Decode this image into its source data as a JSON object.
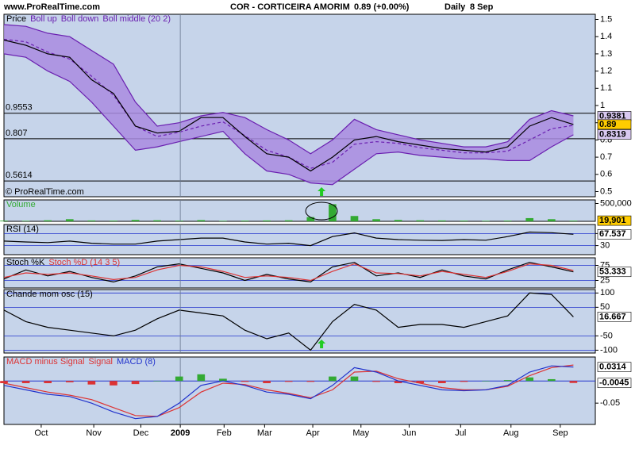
{
  "header": {
    "site": "www.ProRealTime.com",
    "ticker": "COR - CORTICEIRA AMORIM",
    "quote": "0.89 (+0.00%)",
    "period": "Daily",
    "date": "8 Sep",
    "watermark": "© ProRealTime.com"
  },
  "chart_data": [
    {
      "type": "bollinger",
      "x": [
        0,
        2,
        4,
        6,
        8,
        10,
        12,
        14,
        16,
        18,
        20,
        22,
        24,
        26,
        28,
        30,
        32,
        34,
        36,
        38,
        40,
        42,
        44,
        46,
        48,
        50,
        52
      ],
      "xlim": [
        0,
        54
      ],
      "ylim": [
        0.47,
        1.53
      ],
      "yticks": [
        0.5,
        0.6,
        0.7,
        0.8,
        0.9,
        1,
        1.1,
        1.2,
        1.3,
        1.4,
        1.5
      ],
      "levels": [
        0.9553,
        0.807,
        0.5614
      ],
      "band_color": "#a98be0",
      "series": [
        {
          "name": "Price",
          "color": "#000000",
          "values": [
            1.38,
            1.35,
            1.3,
            1.28,
            1.15,
            1.07,
            0.88,
            0.84,
            0.85,
            0.93,
            0.93,
            0.82,
            0.72,
            0.7,
            0.62,
            0.7,
            0.8,
            0.82,
            0.79,
            0.77,
            0.75,
            0.74,
            0.73,
            0.76,
            0.88,
            0.93,
            0.89
          ]
        },
        {
          "name": "Boll up",
          "color": "#6a1fb0",
          "values": [
            1.47,
            1.46,
            1.42,
            1.4,
            1.32,
            1.24,
            1.02,
            0.88,
            0.9,
            0.94,
            0.96,
            0.93,
            0.86,
            0.8,
            0.72,
            0.8,
            0.92,
            0.86,
            0.83,
            0.8,
            0.78,
            0.76,
            0.76,
            0.79,
            0.92,
            0.97,
            0.94
          ]
        },
        {
          "name": "Boll down",
          "color": "#6a1fb0",
          "values": [
            1.3,
            1.28,
            1.2,
            1.14,
            1.02,
            0.88,
            0.74,
            0.76,
            0.79,
            0.82,
            0.85,
            0.72,
            0.62,
            0.6,
            0.55,
            0.54,
            0.63,
            0.72,
            0.73,
            0.71,
            0.7,
            0.69,
            0.69,
            0.68,
            0.68,
            0.76,
            0.83
          ]
        },
        {
          "name": "Boll middle (20 2)",
          "color": "#6a1fb0",
          "values": [
            1.385,
            1.37,
            1.31,
            1.27,
            1.17,
            1.06,
            0.88,
            0.82,
            0.845,
            0.88,
            0.905,
            0.825,
            0.74,
            0.7,
            0.635,
            0.67,
            0.775,
            0.79,
            0.78,
            0.755,
            0.74,
            0.725,
            0.725,
            0.735,
            0.8,
            0.865,
            0.885
          ]
        }
      ],
      "last_labels": [
        {
          "value": 0.9381,
          "label": "0.9381",
          "color": "#d8c8f0"
        },
        {
          "value": 0.89,
          "label": "0.89",
          "color": "#ffcc00"
        },
        {
          "value": 0.8319,
          "label": "0.8319",
          "color": "#d8c8f0"
        }
      ]
    },
    {
      "type": "bar",
      "x": [
        0,
        2,
        4,
        6,
        8,
        10,
        12,
        14,
        16,
        18,
        20,
        22,
        24,
        26,
        28,
        30,
        32,
        34,
        36,
        38,
        40,
        42,
        44,
        46,
        48,
        50,
        52
      ],
      "xlim": [
        0,
        54
      ],
      "ylim": [
        0,
        600000
      ],
      "yticks": [
        {
          "value": 500000,
          "label": "500,000"
        }
      ],
      "series": [
        {
          "name": "Volume",
          "color": "#33aa33",
          "values": [
            20000,
            15000,
            30000,
            60000,
            25000,
            20000,
            40000,
            30000,
            20000,
            35000,
            15000,
            20000,
            25000,
            30000,
            120000,
            480000,
            150000,
            60000,
            40000,
            30000,
            25000,
            20000,
            15000,
            20000,
            90000,
            60000,
            19901
          ]
        }
      ],
      "last_labels": [
        {
          "value": 19901,
          "label": "19,901",
          "color": "#ffcc00"
        }
      ]
    },
    {
      "type": "line",
      "x": [
        0,
        2,
        4,
        6,
        8,
        10,
        12,
        14,
        16,
        18,
        20,
        22,
        24,
        26,
        28,
        30,
        32,
        34,
        36,
        38,
        40,
        42,
        44,
        46,
        48,
        50,
        52
      ],
      "xlim": [
        0,
        54
      ],
      "ylim": [
        0,
        100
      ],
      "yticks": [
        30,
        70
      ],
      "grid": true,
      "series": [
        {
          "name": "RSI (14)",
          "color": "#000000",
          "values": [
            45,
            42,
            40,
            45,
            38,
            35,
            35,
            45,
            50,
            55,
            55,
            42,
            35,
            38,
            30,
            60,
            72,
            55,
            50,
            48,
            47,
            50,
            48,
            60,
            75,
            73,
            67.537
          ]
        }
      ],
      "last_labels": [
        {
          "value": 67.537,
          "label": "67.537",
          "color": "#ffffff"
        }
      ]
    },
    {
      "type": "line",
      "x": [
        0,
        2,
        4,
        6,
        8,
        10,
        12,
        14,
        16,
        18,
        20,
        22,
        24,
        26,
        28,
        30,
        32,
        34,
        36,
        38,
        40,
        42,
        44,
        46,
        48,
        50,
        52
      ],
      "xlim": [
        0,
        54
      ],
      "ylim": [
        0,
        100
      ],
      "yticks": [
        25,
        75
      ],
      "grid": true,
      "series": [
        {
          "name": "Stoch %K",
          "color": "#000000",
          "values": [
            30,
            60,
            40,
            55,
            35,
            20,
            40,
            70,
            80,
            65,
            50,
            25,
            45,
            30,
            20,
            70,
            85,
            40,
            50,
            35,
            60,
            40,
            30,
            60,
            85,
            70,
            53.333
          ]
        },
        {
          "name": "Stoch %D (14 3 5)",
          "color": "#dd3333",
          "values": [
            35,
            50,
            45,
            50,
            40,
            28,
            35,
            60,
            75,
            70,
            55,
            35,
            40,
            35,
            25,
            55,
            80,
            50,
            48,
            40,
            55,
            45,
            35,
            55,
            80,
            75,
            58
          ]
        }
      ],
      "last_labels": [
        {
          "value": 53.333,
          "label": "53.333",
          "color": "#ffffff"
        }
      ]
    },
    {
      "type": "line",
      "x": [
        0,
        2,
        4,
        6,
        8,
        10,
        12,
        14,
        16,
        18,
        20,
        22,
        24,
        26,
        28,
        30,
        32,
        34,
        36,
        38,
        40,
        42,
        44,
        46,
        48,
        50,
        52
      ],
      "xlim": [
        0,
        54
      ],
      "ylim": [
        -110,
        112
      ],
      "yticks": [
        -100,
        -50,
        50,
        100
      ],
      "grid": true,
      "series": [
        {
          "name": "Chande mom osc (15)",
          "color": "#000000",
          "values": [
            40,
            0,
            -20,
            -30,
            -40,
            -50,
            -30,
            10,
            40,
            30,
            20,
            -30,
            -60,
            -40,
            -100,
            0,
            60,
            40,
            -20,
            -10,
            -10,
            -20,
            0,
            20,
            100,
            95,
            16.667
          ]
        }
      ],
      "last_labels": [
        {
          "value": 16.667,
          "label": "16.667",
          "color": "#ffffff"
        }
      ]
    },
    {
      "type": "macd",
      "x": [
        0,
        2,
        4,
        6,
        8,
        10,
        12,
        14,
        16,
        18,
        20,
        22,
        24,
        26,
        28,
        30,
        32,
        34,
        36,
        38,
        40,
        42,
        44,
        46,
        48,
        50,
        52
      ],
      "xlim": [
        0,
        54
      ],
      "ylim": [
        -0.098,
        0.054
      ],
      "yticks": [
        -0.05
      ],
      "hlines": [
        0
      ],
      "xticks": [
        {
          "value": 3.4,
          "label": "Oct"
        },
        {
          "value": 8.2,
          "label": "Nov"
        },
        {
          "value": 12.5,
          "label": "Dec"
        },
        {
          "value": 16.1,
          "label": "2009",
          "bold": true
        },
        {
          "value": 20.1,
          "label": "Feb"
        },
        {
          "value": 23.8,
          "label": "Mar"
        },
        {
          "value": 28.2,
          "label": "Apr"
        },
        {
          "value": 32.6,
          "label": "May"
        },
        {
          "value": 37,
          "label": "Jun"
        },
        {
          "value": 41.7,
          "label": "Jul"
        },
        {
          "value": 46.3,
          "label": "Aug"
        },
        {
          "value": 50.8,
          "label": "Sep"
        }
      ],
      "series": [
        {
          "name": "MACD minus Signal",
          "color": "#dd3333",
          "values": [
            -0.005,
            -0.005,
            -0.005,
            -0.003,
            -0.008,
            -0.01,
            -0.007,
            0,
            0.01,
            0.015,
            0.005,
            -0.002,
            -0.005,
            -0.002,
            -0.002,
            0.01,
            0.01,
            -0.002,
            -0.005,
            -0.005,
            -0.005,
            -0.002,
            0,
            0.002,
            0.008,
            0.004,
            -0.0045
          ]
        },
        {
          "name": "Signal",
          "color": "#dd3333",
          "values": [
            -0.005,
            -0.015,
            -0.025,
            -0.032,
            -0.042,
            -0.06,
            -0.078,
            -0.08,
            -0.06,
            -0.025,
            -0.005,
            -0.008,
            -0.02,
            -0.028,
            -0.038,
            -0.02,
            0.02,
            0.022,
            0.005,
            -0.005,
            -0.015,
            -0.02,
            -0.02,
            -0.012,
            0.012,
            0.03,
            0.0359
          ]
        },
        {
          "name": "MACD (8)",
          "color": "#2233cc",
          "values": [
            -0.01,
            -0.02,
            -0.03,
            -0.035,
            -0.05,
            -0.07,
            -0.085,
            -0.08,
            -0.05,
            -0.01,
            0,
            -0.01,
            -0.025,
            -0.03,
            -0.04,
            -0.01,
            0.03,
            0.02,
            0,
            -0.01,
            -0.02,
            -0.022,
            -0.02,
            -0.01,
            0.02,
            0.034,
            0.0314
          ]
        }
      ],
      "last_labels": [
        {
          "value": 0.0314,
          "label": "0.0314",
          "color": "#ffffff"
        },
        {
          "value": -0.0045,
          "label": "-0.0045",
          "color": "#ffffff"
        }
      ]
    }
  ]
}
